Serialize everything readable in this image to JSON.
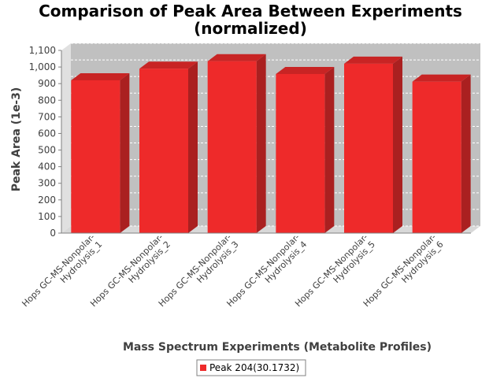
{
  "chart_data": {
    "type": "bar",
    "title_lines": [
      "Comparison of Peak Area Between Experiments",
      "(normalized)"
    ],
    "xlabel": "Mass Spectrum Experiments (Metabolite Profiles)",
    "ylabel": "Peak Area (1e-3)",
    "categories": [
      [
        "Hops GC-MS-Nonpolar-",
        "Hydrolysis_1"
      ],
      [
        "Hops GC-MS-Nonpolar-",
        "Hydrolysis_2"
      ],
      [
        "Hops GC-MS-Nonpolar-",
        "Hydrolysis_3"
      ],
      [
        "Hops GC-MS-Nonpolar-",
        "Hydrolysis_4"
      ],
      [
        "Hops GC-MS-Nonpolar-",
        "Hydrolysis_5"
      ],
      [
        "Hops GC-MS-Nonpolar-",
        "Hydrolysis_6"
      ]
    ],
    "series": [
      {
        "name": "Peak 204(30.1732)",
        "values": [
          920,
          990,
          1035,
          958,
          1020,
          912
        ]
      }
    ],
    "ylim": [
      0,
      1100
    ],
    "yticks": [
      "0",
      "100",
      "200",
      "300",
      "400",
      "500",
      "600",
      "700",
      "800",
      "900",
      "1,000",
      "1,100"
    ],
    "grid": true,
    "legend_position": "bottom",
    "colors": {
      "bar_front": "#ee2a2a",
      "bar_side": "#aa2020",
      "bar_top": "#c82424",
      "plot_back": "#c0c0c0",
      "plot_floor": "#d8d8d8",
      "gridline": "#ffffff",
      "axis": "#808080"
    }
  }
}
